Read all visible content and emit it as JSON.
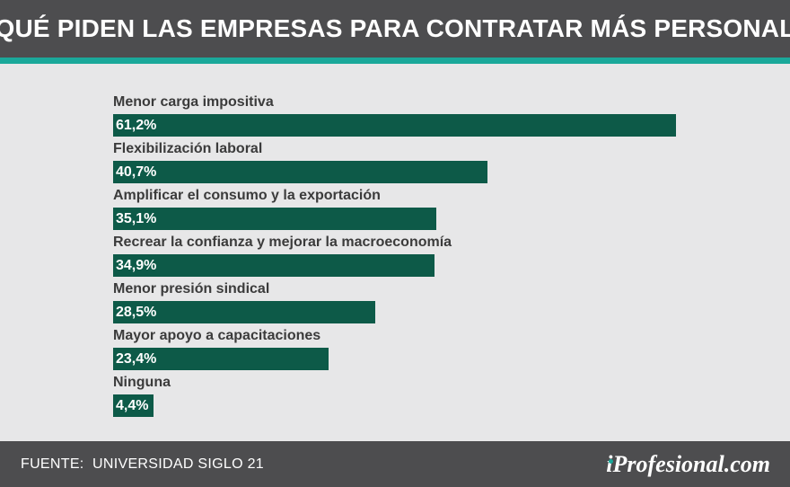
{
  "header": {
    "title": "QUÉ PIDEN LAS EMPRESAS PARA CONTRATAR MÁS PERSONAL"
  },
  "colors": {
    "header_bg": "#4d4d4f",
    "accent": "#1aa89a",
    "bar": "#0d5a48",
    "background": "#e7e7e8"
  },
  "chart_data": {
    "type": "bar",
    "orientation": "horizontal",
    "title": "QUÉ PIDEN LAS EMPRESAS PARA CONTRATAR MÁS PERSONAL",
    "categories": [
      "Menor carga impositiva",
      "Flexibilización laboral",
      "Amplificar el consumo y la exportación",
      "Recrear la confianza y mejorar la macroeconomía",
      "Menor presión sindical",
      "Mayor apoyo a capacitaciones",
      "Ninguna"
    ],
    "values": [
      61.2,
      40.7,
      35.1,
      34.9,
      28.5,
      23.4,
      4.4
    ],
    "value_labels": [
      "61,2%",
      "40,7%",
      "35,1%",
      "34,9%",
      "28,5%",
      "23,4%",
      "4,4%"
    ],
    "unit": "%",
    "xlim": [
      0,
      100
    ],
    "grid": false,
    "legend": "none"
  },
  "footer": {
    "source": "FUENTE:  UNIVERSIDAD SIGLO 21",
    "logo_i": "i",
    "logo_rest": "Profesional.com"
  }
}
